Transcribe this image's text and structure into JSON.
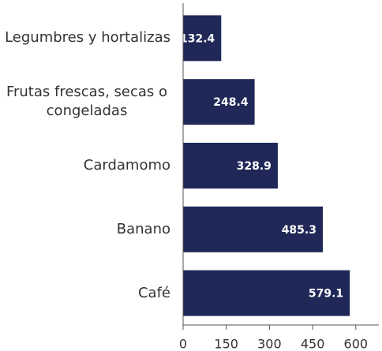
{
  "chart_data": {
    "type": "bar",
    "orientation": "horizontal",
    "categories": [
      "Legumbres y hortalizas",
      "Frutas frescas, secas o congeladas",
      "Cardamomo",
      "Banano",
      "Café"
    ],
    "values": [
      132.4,
      248.4,
      328.9,
      485.3,
      579.1
    ],
    "color": "#1f2857",
    "xlim": [
      0,
      680
    ],
    "xticks": [
      0,
      150,
      300,
      450,
      600
    ],
    "grid": false
  }
}
